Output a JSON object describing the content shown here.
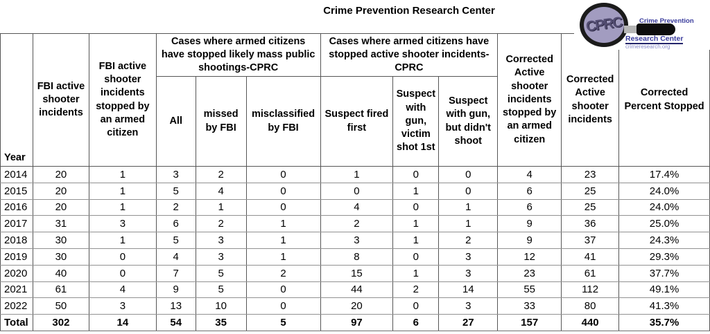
{
  "title": "Crime Prevention Research Center",
  "logo": {
    "acronym": "CPRC",
    "name_line1": "Crime Prevention",
    "name_line2": "Research Center",
    "url": "crimeresearch.org",
    "colors": {
      "brand_blue": "#3a3c9c",
      "url_purple": "#8a8cc9",
      "lens_purple": "#a29cc0"
    }
  },
  "chart_data": {
    "type": "table",
    "title": "Crime Prevention Research Center",
    "year_header": "Year",
    "columns": {
      "fbi_incidents": "FBI active shooter incidents",
      "fbi_stopped_by_citizen": "FBI active shooter incidents stopped by an armed citizen",
      "corrected_stopped_by_citizen": "Corrected Active shooter incidents stopped by an armed citizen",
      "corrected_incidents": "Corrected Active shooter incidents",
      "corrected_percent": "Corrected Percent Stopped"
    },
    "group_mass_shootings": {
      "label": "Cases where armed citizens have stopped likely mass public shootings-CPRC",
      "subcolumns": [
        "All",
        "missed by FBI",
        "misclassified by FBI"
      ]
    },
    "group_active_shooter": {
      "label": "Cases where armed citizens have stopped active shooter incidents-CPRC",
      "subcolumns": [
        "Suspect fired first",
        "Suspect with gun, victim shot 1st",
        "Suspect with gun, but didn't shoot"
      ]
    },
    "total_label": "Total",
    "rows": [
      [
        "2014",
        "20",
        "1",
        "3",
        "2",
        "0",
        "1",
        "0",
        "0",
        "4",
        "23",
        "17.4%"
      ],
      [
        "2015",
        "20",
        "1",
        "5",
        "4",
        "0",
        "0",
        "1",
        "0",
        "6",
        "25",
        "24.0%"
      ],
      [
        "2016",
        "20",
        "1",
        "2",
        "1",
        "0",
        "4",
        "0",
        "1",
        "6",
        "25",
        "24.0%"
      ],
      [
        "2017",
        "31",
        "3",
        "6",
        "2",
        "1",
        "2",
        "1",
        "1",
        "9",
        "36",
        "25.0%"
      ],
      [
        "2018",
        "30",
        "1",
        "5",
        "3",
        "1",
        "3",
        "1",
        "2",
        "9",
        "37",
        "24.3%"
      ],
      [
        "2019",
        "30",
        "0",
        "4",
        "3",
        "1",
        "8",
        "0",
        "3",
        "12",
        "41",
        "29.3%"
      ],
      [
        "2020",
        "40",
        "0",
        "7",
        "5",
        "2",
        "15",
        "1",
        "3",
        "23",
        "61",
        "37.7%"
      ],
      [
        "2021",
        "61",
        "4",
        "9",
        "5",
        "0",
        "44",
        "2",
        "14",
        "55",
        "112",
        "49.1%"
      ],
      [
        "2022",
        "50",
        "3",
        "13",
        "10",
        "0",
        "20",
        "0",
        "3",
        "33",
        "80",
        "41.3%"
      ],
      [
        "Total",
        "302",
        "14",
        "54",
        "35",
        "5",
        "97",
        "6",
        "27",
        "157",
        "440",
        "35.7%"
      ]
    ]
  }
}
